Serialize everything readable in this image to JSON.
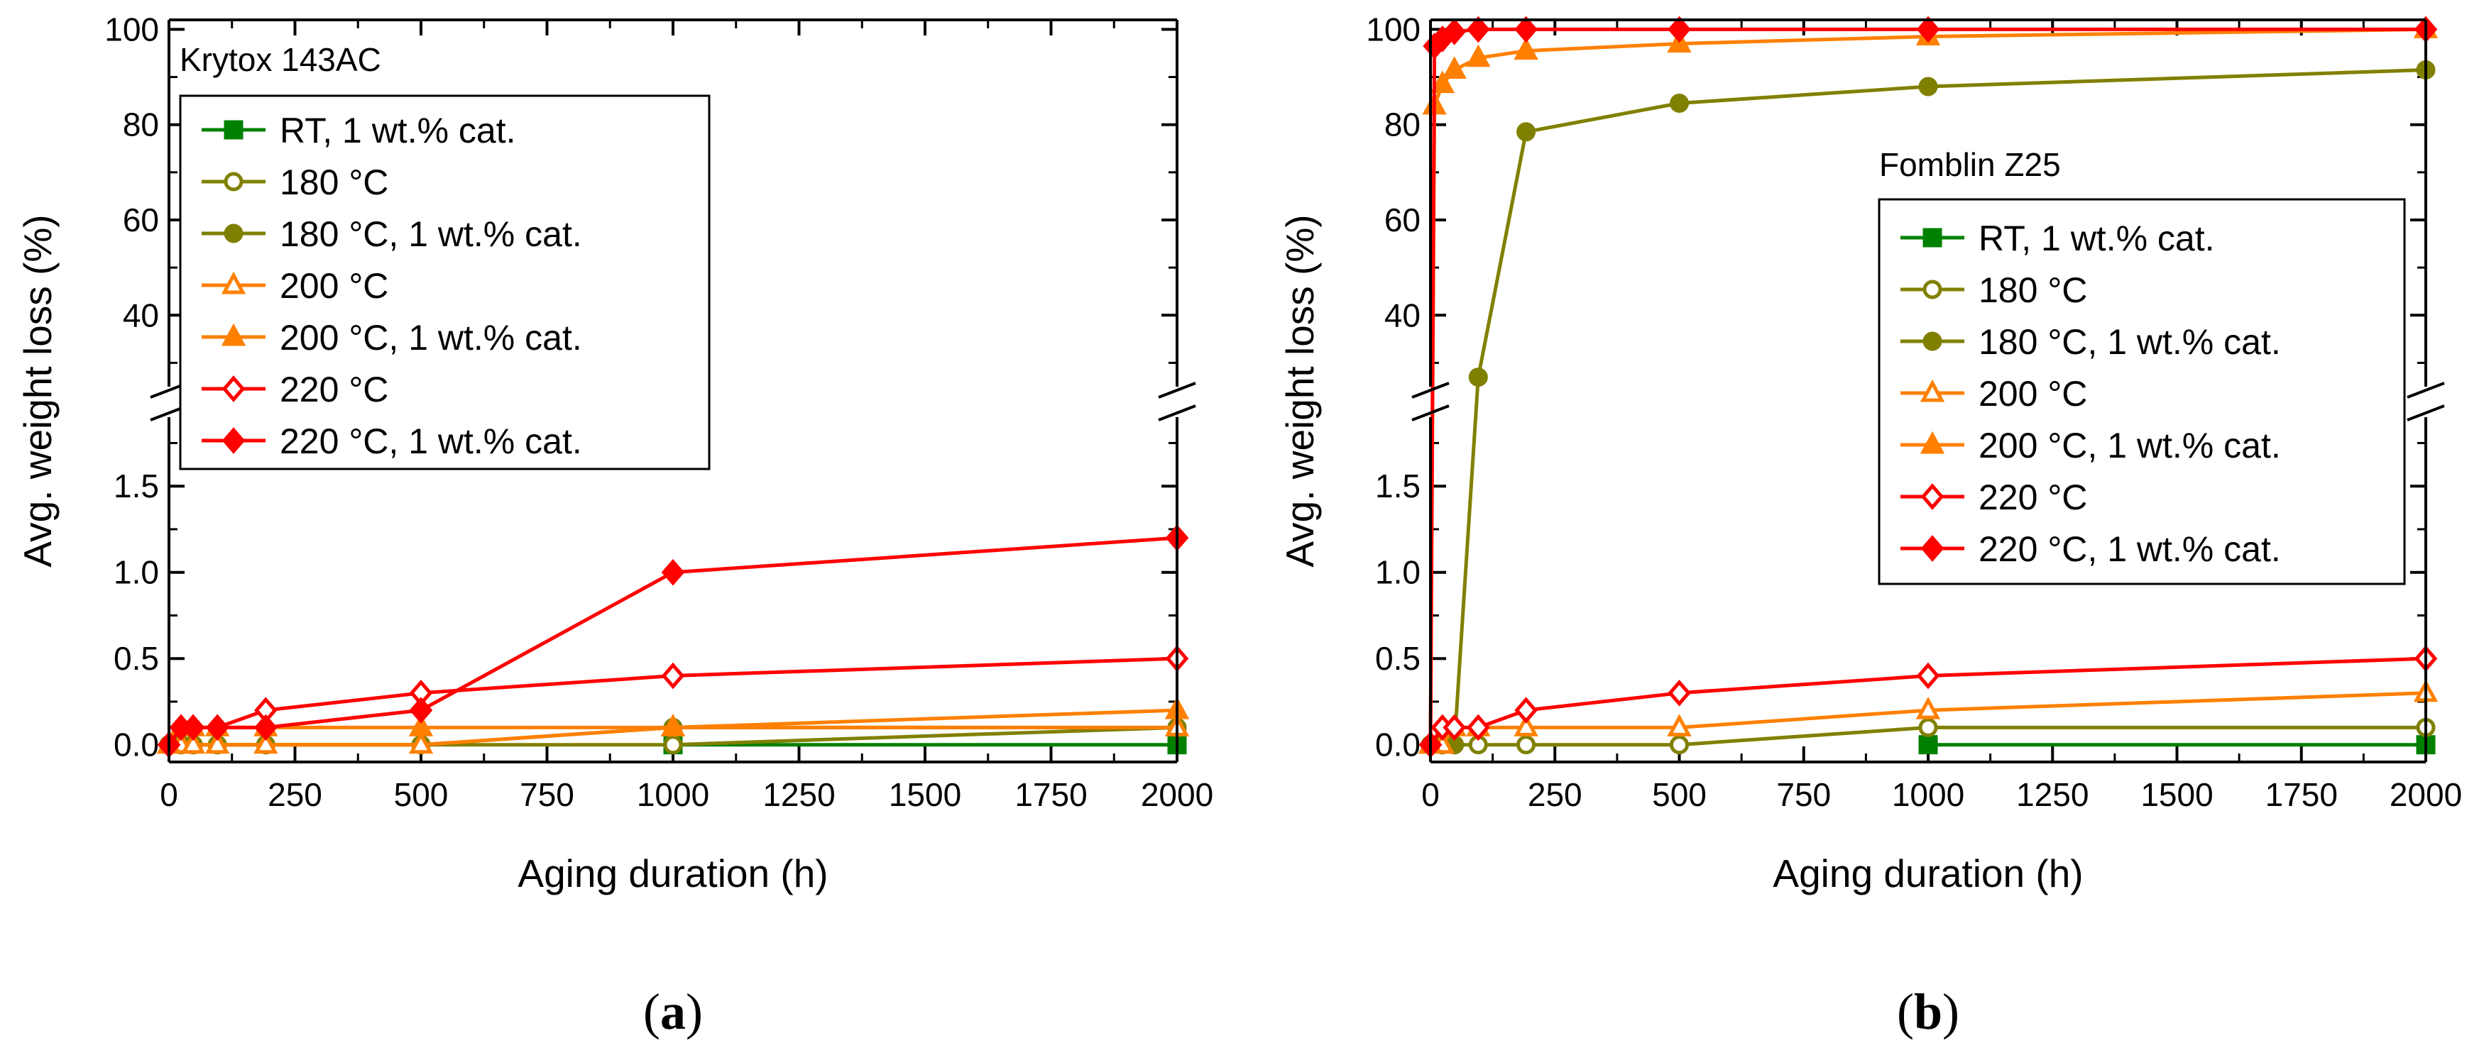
{
  "chart_data": [
    {
      "type": "line",
      "panel": "a",
      "caption_open": "(",
      "caption_letter": "a",
      "caption_close": ")",
      "title": "Krytox 143AC",
      "xlabel": "Aging duration (h)",
      "ylabel": "Avg. weight loss (%)",
      "xlim": [
        0,
        2000
      ],
      "x_ticks": [
        0,
        250,
        500,
        750,
        1000,
        1250,
        1500,
        1750,
        2000
      ],
      "ylim_lower": [
        -0.1,
        1.9
      ],
      "ylim_upper": [
        25,
        102
      ],
      "y_ticks_lower": [
        "0.0",
        "0.5",
        "1.0",
        "1.5"
      ],
      "y_ticks_upper": [
        "40",
        "60",
        "80",
        "100"
      ],
      "axis_break": true,
      "legend_position": "top-left",
      "series": [
        {
          "name": "RT, 1 wt.% cat.",
          "color": "#008000",
          "marker": "square",
          "filled": true,
          "x": [
            1000,
            2000
          ],
          "y": [
            0.0,
            0.0
          ]
        },
        {
          "name": "180 °C",
          "color": "#808000",
          "marker": "circle",
          "filled": false,
          "x": [
            0,
            24,
            48,
            96,
            192,
            500,
            1000,
            2000
          ],
          "y": [
            0,
            0,
            0,
            0,
            0,
            0,
            0,
            0.1
          ]
        },
        {
          "name": "180 °C, 1 wt.% cat.",
          "color": "#808000",
          "marker": "circle",
          "filled": true,
          "x": [
            0,
            24,
            48,
            96,
            192,
            500,
            1000,
            2000
          ],
          "y": [
            0,
            0,
            0,
            0,
            0,
            0,
            0.1,
            0.1
          ]
        },
        {
          "name": "200 °C",
          "color": "#FF8000",
          "marker": "triangle",
          "filled": false,
          "x": [
            0,
            24,
            48,
            96,
            192,
            500,
            1000,
            2000
          ],
          "y": [
            0,
            0,
            0,
            0,
            0,
            0,
            0.1,
            0.1
          ]
        },
        {
          "name": "200 °C, 1 wt.% cat.",
          "color": "#FF8000",
          "marker": "triangle",
          "filled": true,
          "x": [
            0,
            24,
            48,
            96,
            192,
            500,
            1000,
            2000
          ],
          "y": [
            0,
            0.1,
            0.1,
            0.1,
            0.1,
            0.1,
            0.1,
            0.2
          ]
        },
        {
          "name": "220 °C",
          "color": "#FF0000",
          "marker": "diamond",
          "filled": false,
          "x": [
            0,
            24,
            48,
            96,
            192,
            500,
            1000,
            2000
          ],
          "y": [
            0,
            0.1,
            0.1,
            0.1,
            0.2,
            0.3,
            0.4,
            0.5
          ]
        },
        {
          "name": "220 °C, 1 wt.% cat.",
          "color": "#FF0000",
          "marker": "diamond",
          "filled": true,
          "x": [
            0,
            24,
            48,
            96,
            192,
            500,
            1000,
            2000
          ],
          "y": [
            0,
            0.1,
            0.1,
            0.1,
            0.1,
            0.2,
            1.0,
            1.2
          ]
        }
      ]
    },
    {
      "type": "line",
      "panel": "b",
      "caption_open": "(",
      "caption_letter": "b",
      "caption_close": ")",
      "title": "Fomblin Z25",
      "xlabel": "Aging duration (h)",
      "ylabel": "Avg. weight loss (%)",
      "xlim": [
        0,
        2000
      ],
      "x_ticks": [
        0,
        250,
        500,
        750,
        1000,
        1250,
        1500,
        1750,
        2000
      ],
      "ylim_lower": [
        -0.1,
        1.9
      ],
      "ylim_upper": [
        25,
        102
      ],
      "y_ticks_lower": [
        "0.0",
        "0.5",
        "1.0",
        "1.5"
      ],
      "y_ticks_upper": [
        "40",
        "60",
        "80",
        "100"
      ],
      "axis_break": true,
      "legend_position": "center-right",
      "series": [
        {
          "name": "RT, 1 wt.% cat.",
          "color": "#008000",
          "marker": "square",
          "filled": true,
          "x": [
            1000,
            2000
          ],
          "y": [
            0.0,
            0.0
          ]
        },
        {
          "name": "180 °C",
          "color": "#808000",
          "marker": "circle",
          "filled": false,
          "x": [
            0,
            24,
            48,
            96,
            192,
            500,
            1000,
            2000
          ],
          "y": [
            0,
            0,
            0,
            0,
            0,
            0,
            0.1,
            0.1
          ]
        },
        {
          "name": "180 °C, 1 wt.% cat.",
          "color": "#808000",
          "marker": "circle",
          "filled": true,
          "x": [
            0,
            24,
            48,
            96,
            192,
            500,
            1000,
            2000
          ],
          "y": [
            0,
            0,
            0,
            27,
            78.5,
            84.5,
            88,
            91.5
          ]
        },
        {
          "name": "200 °C",
          "color": "#FF8000",
          "marker": "triangle",
          "filled": false,
          "x": [
            0,
            24,
            48,
            96,
            192,
            500,
            1000,
            2000
          ],
          "y": [
            0,
            0,
            0.1,
            0.1,
            0.1,
            0.1,
            0.2,
            0.3
          ]
        },
        {
          "name": "200 °C, 1 wt.% cat.",
          "color": "#FF8000",
          "marker": "triangle",
          "filled": true,
          "x": [
            0,
            8,
            24,
            48,
            96,
            192,
            500,
            1000,
            2000
          ],
          "y": [
            0,
            84,
            88.5,
            91.5,
            94,
            95.5,
            97,
            98.5,
            100
          ]
        },
        {
          "name": "220 °C",
          "color": "#FF0000",
          "marker": "diamond",
          "filled": false,
          "x": [
            0,
            24,
            48,
            96,
            192,
            500,
            1000,
            2000
          ],
          "y": [
            0,
            0.1,
            0.1,
            0.1,
            0.2,
            0.3,
            0.4,
            0.5
          ]
        },
        {
          "name": "220 °C, 1 wt.% cat.",
          "color": "#FF0000",
          "marker": "diamond",
          "filled": true,
          "x": [
            0,
            8,
            24,
            48,
            96,
            192,
            500,
            1000,
            2000
          ],
          "y": [
            0,
            96.5,
            98,
            99.5,
            100,
            100,
            100,
            100,
            100
          ]
        }
      ]
    }
  ]
}
